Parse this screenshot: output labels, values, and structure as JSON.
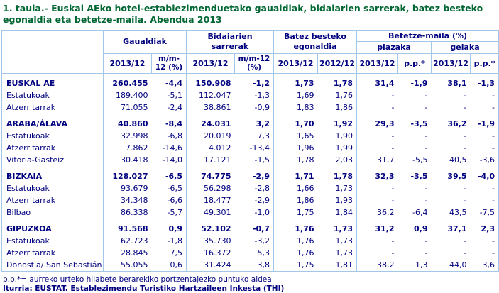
{
  "title": "1. taula.- Euskal AEko hotel-establezimenduetako gaualdiak, bidaiarien sarrerak, batez besteko egonaldia eta betetze-maila. Abendua 2013",
  "colors": {
    "title_green": "#006633",
    "text_navy": "#000080",
    "grid_blue": "#a3c7e8",
    "background": "#ffffff"
  },
  "table": {
    "groups": {
      "gaualdiak": "Gaualdiak",
      "bidaiarien": "Bidaiarien sarrerak",
      "egonaldia": "Batez besteko egonaldia",
      "betetze": "Betetze-maila (%)",
      "plazaka": "plazaka",
      "gelaka": "gelaka"
    },
    "columns": [
      "2013/12",
      "m/m-12 (%)",
      "2013/12",
      "m/m-12 (%)",
      "2013/12",
      "2012/12",
      "2013/12",
      "p.p.*",
      "2013/12",
      "p.p.*"
    ],
    "rows": [
      {
        "label": "EUSKAL AE",
        "bold": true,
        "separator": false,
        "values": [
          "260.455",
          "-4,4",
          "150.908",
          "-1,2",
          "1,73",
          "1,78",
          "31,4",
          "-1,9",
          "38,1",
          "-1,3"
        ]
      },
      {
        "label": "Estatukoak",
        "bold": false,
        "separator": false,
        "values": [
          "189.400",
          "-5,1",
          "112.047",
          "-1,3",
          "1,69",
          "1,76",
          "-",
          "-",
          "-",
          "-"
        ]
      },
      {
        "label": "Atzerritarrak",
        "bold": false,
        "separator": false,
        "values": [
          "71.055",
          "-2,4",
          "38.861",
          "-0,9",
          "1,83",
          "1,86",
          "-",
          "-",
          "-",
          "-"
        ]
      },
      {
        "label": "ARABA/ÁLAVA",
        "bold": true,
        "separator": false,
        "values": [
          "40.860",
          "-8,4",
          "24.031",
          "3,2",
          "1,70",
          "1,92",
          "29,3",
          "-3,5",
          "36,2",
          "-1,9"
        ]
      },
      {
        "label": "Estatukoak",
        "bold": false,
        "separator": false,
        "values": [
          "32.998",
          "-6,8",
          "20.019",
          "7,3",
          "1,65",
          "1,90",
          "-",
          "-",
          "-",
          "-"
        ]
      },
      {
        "label": "Atzerritarrak",
        "bold": false,
        "separator": false,
        "values": [
          "7.862",
          "-14,6",
          "4.012",
          "-13,4",
          "1,96",
          "1,99",
          "-",
          "-",
          "-",
          "-"
        ]
      },
      {
        "label": "Vitoria-Gasteiz",
        "bold": false,
        "separator": false,
        "values": [
          "30.418",
          "-14,0",
          "17.121",
          "-1,5",
          "1,78",
          "2,03",
          "31,7",
          "-5,5",
          "40,5",
          "-3,6"
        ]
      },
      {
        "label": "BIZKAIA",
        "bold": true,
        "separator": false,
        "values": [
          "128.027",
          "-6,5",
          "74.775",
          "-2,9",
          "1,71",
          "1,78",
          "32,3",
          "-3,5",
          "39,5",
          "-4,0"
        ]
      },
      {
        "label": "Estatukoak",
        "bold": false,
        "separator": false,
        "values": [
          "93.679",
          "-6,5",
          "56.298",
          "-2,8",
          "1,66",
          "1,73",
          "-",
          "-",
          "-",
          "-"
        ]
      },
      {
        "label": "Atzerritarrak",
        "bold": false,
        "separator": false,
        "values": [
          "34.348",
          "-6,6",
          "18.477",
          "-2,9",
          "1,86",
          "1,93",
          "-",
          "-",
          "-",
          "-"
        ]
      },
      {
        "label": "Bilbao",
        "bold": false,
        "separator": false,
        "values": [
          "86.338",
          "-5,7",
          "49.301",
          "-1,0",
          "1,75",
          "1,84",
          "36,2",
          "-6,4",
          "43,5",
          "-7,5"
        ]
      },
      {
        "label": "GIPUZKOA",
        "bold": true,
        "separator": true,
        "values": [
          "91.568",
          "0,9",
          "52.102",
          "-0,7",
          "1,76",
          "1,73",
          "31,2",
          "0,9",
          "37,1",
          "2,3"
        ]
      },
      {
        "label": "Estatukoak",
        "bold": false,
        "separator": false,
        "values": [
          "62.723",
          "-1,8",
          "35.730",
          "-3,2",
          "1,76",
          "1,73",
          "-",
          "-",
          "-",
          "-"
        ]
      },
      {
        "label": "Atzerritarrak",
        "bold": false,
        "separator": false,
        "values": [
          "28.845",
          "7,5",
          "16.372",
          "5,3",
          "1,76",
          "1,73",
          "-",
          "-",
          "-",
          "-"
        ]
      },
      {
        "label": "Donostia/ San Sebastián",
        "bold": false,
        "separator": false,
        "values": [
          "55.055",
          "0,6",
          "31.424",
          "3,8",
          "1,75",
          "1,81",
          "38,2",
          "1,3",
          "44,0",
          "3,6"
        ]
      }
    ]
  },
  "footnotes": {
    "definition": "p.p.*= aurreko urteko hilabete berarekiko portzentajezko puntuko aldea",
    "source": "Iturria: EUSTAT. Establezimendu Turistiko Hartzaileen Inkesta (THI)"
  }
}
